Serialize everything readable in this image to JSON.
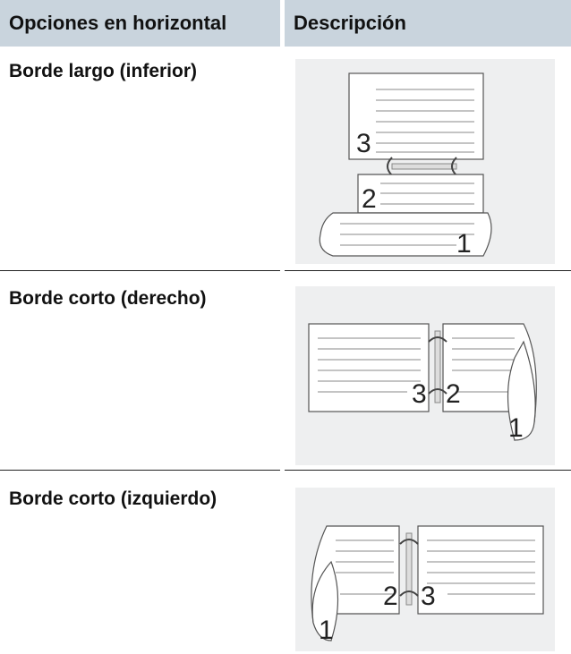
{
  "table": {
    "header": [
      "Opciones en horizontal",
      "Descripción"
    ],
    "rows": [
      {
        "option": "Borde largo (inferior)",
        "figure": [
          "3",
          "2",
          "1"
        ]
      },
      {
        "option": "Borde corto (derecho)",
        "figure": [
          "3",
          "2",
          "1"
        ]
      },
      {
        "option": "Borde corto (izquierdo)",
        "figure": [
          "2",
          "3",
          "1"
        ]
      }
    ]
  }
}
